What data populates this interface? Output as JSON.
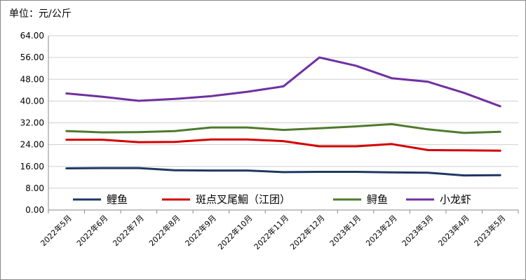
{
  "chart_data": {
    "type": "line",
    "unit_label": "单位：元/公斤",
    "categories": [
      "2022年5月",
      "2022年6月",
      "2022年7月",
      "2022年8月",
      "2022年9月",
      "2022年10月",
      "2022年11月",
      "2022年12月",
      "2023年1月",
      "2023年2月",
      "2023年3月",
      "2023年4月",
      "2023年5月"
    ],
    "ylim": [
      0,
      64
    ],
    "yticks": [
      "0.00",
      "8.00",
      "16.00",
      "24.00",
      "32.00",
      "40.00",
      "48.00",
      "56.00",
      "64.00"
    ],
    "grid": true,
    "legend_position": "inside-bottom",
    "series": [
      {
        "name": "鲤鱼",
        "color": "#1f3864",
        "values": [
          15.3,
          15.4,
          15.4,
          14.6,
          14.5,
          14.5,
          13.9,
          14.0,
          14.0,
          13.8,
          13.7,
          12.7,
          12.8
        ]
      },
      {
        "name": "斑点叉尾鮰（江团）",
        "color": "#d40000",
        "values": [
          25.8,
          25.8,
          24.9,
          25.0,
          25.9,
          25.9,
          25.3,
          23.4,
          23.4,
          24.2,
          22.0,
          21.9,
          21.8
        ]
      },
      {
        "name": "鲟鱼",
        "color": "#4e7a2c",
        "values": [
          29.0,
          28.5,
          28.6,
          29.0,
          30.3,
          30.3,
          29.4,
          30.0,
          30.7,
          31.5,
          29.6,
          28.3,
          28.7
        ]
      },
      {
        "name": "小龙虾",
        "color": "#7030a0",
        "values": [
          42.8,
          41.6,
          40.1,
          40.8,
          41.8,
          43.4,
          45.4,
          56.0,
          53.0,
          48.4,
          47.1,
          43.0,
          38.1
        ]
      }
    ]
  }
}
